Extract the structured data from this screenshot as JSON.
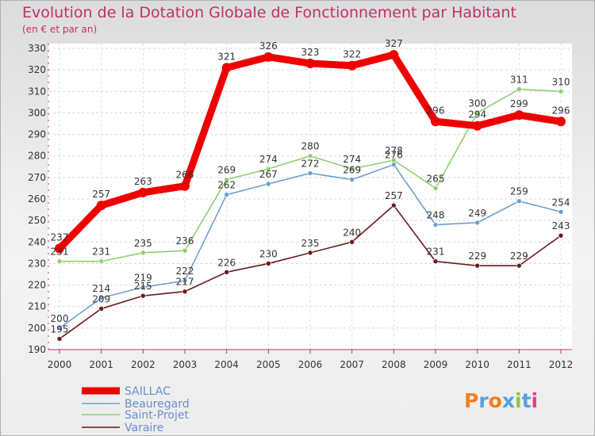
{
  "title": "Evolution de la Dotation Globale de Fonctionnement par Habitant",
  "subtitle": "(en € et par an)",
  "logo_text": "Proxiti",
  "chart_data": {
    "type": "line",
    "title": "Evolution de la Dotation Globale de Fonctionnement par Habitant",
    "subtitle": "(en € et par an)",
    "x": [
      "2000",
      "2001",
      "2002",
      "2003",
      "2004",
      "2005",
      "2006",
      "2007",
      "2008",
      "2009",
      "2010",
      "2011",
      "2012"
    ],
    "ylim": [
      190,
      330
    ],
    "yticks": [
      190,
      200,
      210,
      220,
      230,
      240,
      250,
      260,
      270,
      280,
      290,
      300,
      310,
      320,
      330
    ],
    "grid": true,
    "legend_position": "bottom-left",
    "series": [
      {
        "name": "SAILLAC",
        "color": "#ee0000",
        "values": [
          237,
          257,
          263,
          266,
          321,
          326,
          323,
          322,
          327,
          296,
          294,
          299,
          296
        ]
      },
      {
        "name": "Beauregard",
        "color": "#6ca0d0",
        "values": [
          200,
          214,
          219,
          222,
          262,
          267,
          272,
          269,
          276,
          248,
          249,
          259,
          254
        ]
      },
      {
        "name": "Saint-Projet",
        "color": "#8fd070",
        "values": [
          231,
          231,
          235,
          236,
          269,
          274,
          280,
          274,
          278,
          265,
          300,
          311,
          310
        ]
      },
      {
        "name": "Varaire",
        "color": "#6b1a1a",
        "values": [
          195,
          209,
          215,
          217,
          226,
          230,
          235,
          240,
          257,
          231,
          229,
          229,
          243
        ]
      }
    ]
  }
}
